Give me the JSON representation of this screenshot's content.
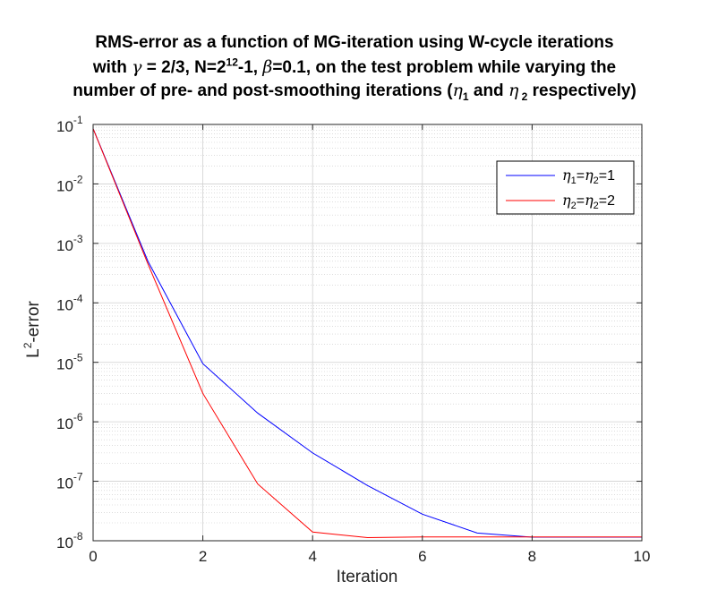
{
  "chart_data": {
    "type": "line",
    "title": {
      "line1": "RMS-error as a function of MG-iteration using W-cycle iterations",
      "line2": [
        "with ",
        "γ",
        " = 2/3, N=2",
        "12",
        "-1, ",
        "β",
        "=0.1, on the test problem while varying the"
      ],
      "line3": [
        "number of pre- and post-smoothing iterations (",
        "η",
        "1",
        " and ",
        "η",
        " 2",
        " respectively)"
      ]
    },
    "xlabel": "Iteration",
    "ylabel": {
      "base": "L",
      "sup": "2",
      "rest": "-error"
    },
    "xlim": [
      0,
      10
    ],
    "ylim": [
      1e-08,
      0.1
    ],
    "yscale": "log",
    "grid": true,
    "minor_grid": true,
    "x_ticks": [
      "0",
      "2",
      "4",
      "6",
      "8",
      "10"
    ],
    "y_ticks": [
      {
        "base": "10",
        "exp": "-1"
      },
      {
        "base": "10",
        "exp": "-2"
      },
      {
        "base": "10",
        "exp": "-3"
      },
      {
        "base": "10",
        "exp": "-4"
      },
      {
        "base": "10",
        "exp": "-5"
      },
      {
        "base": "10",
        "exp": "-6"
      },
      {
        "base": "10",
        "exp": "-7"
      },
      {
        "base": "10",
        "exp": "-8"
      }
    ],
    "legend_position": "top-right",
    "series": [
      {
        "name": {
          "g1": "η",
          "s1": "1",
          "mid": "=",
          "g2": "η",
          "s2": "2",
          "tail": "=1"
        },
        "color": "#0000ff",
        "x": [
          0,
          1,
          2,
          3,
          4,
          5,
          6,
          7,
          8,
          9,
          10
        ],
        "y": [
          0.085,
          0.0005,
          9.5e-06,
          1.4e-06,
          3e-07,
          8.5e-08,
          2.8e-08,
          1.35e-08,
          1.15e-08,
          1.15e-08,
          1.15e-08
        ]
      },
      {
        "name": {
          "g1": "η",
          "s1": "2",
          "mid": "=",
          "g2": "η",
          "s2": "2",
          "tail": "=2"
        },
        "color": "#ff0000",
        "x": [
          0,
          1,
          2,
          3,
          4,
          5,
          6,
          7,
          8,
          9,
          10
        ],
        "y": [
          0.085,
          0.00045,
          3e-06,
          9e-08,
          1.4e-08,
          1.13e-08,
          1.16e-08,
          1.16e-08,
          1.16e-08,
          1.16e-08,
          1.16e-08
        ]
      }
    ]
  }
}
